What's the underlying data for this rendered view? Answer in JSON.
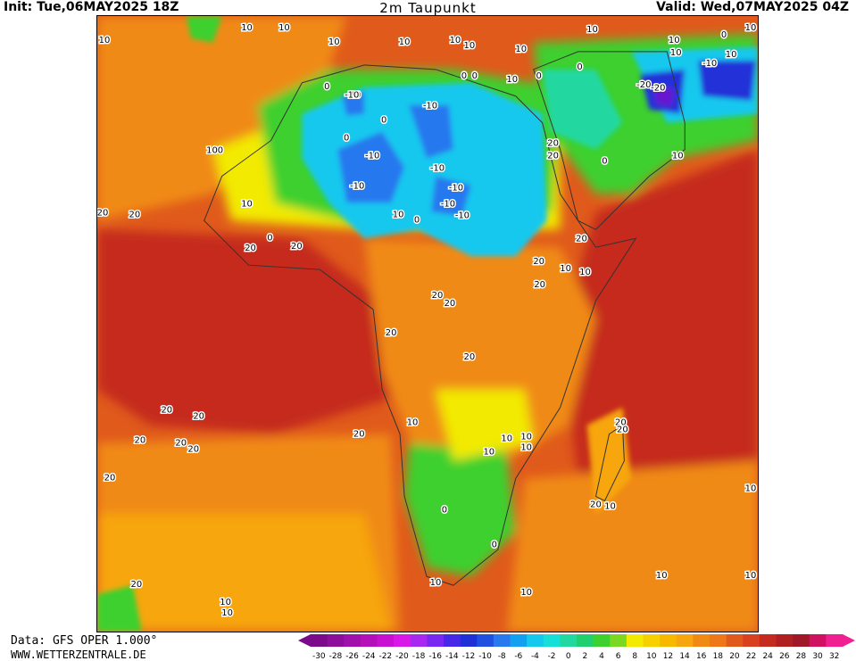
{
  "header": {
    "init": "Init: Tue,06MAY2025 18Z",
    "title": "2m Taupunkt",
    "valid": "Valid: Wed,07MAY2025 04Z"
  },
  "footer": {
    "source": "Data: GFS OPER 1.000°",
    "website": "WWW.WETTERZENTRALE.DE"
  },
  "colors": {
    "ocean_hot": "#c52a1f",
    "ocean_warm": "#e05a1c",
    "orange": "#f08a12",
    "light_orange": "#f7a60f",
    "yellow": "#f2ea00",
    "green": "#3ed02f",
    "teal": "#20d8a0",
    "cyan": "#14c8ee",
    "blue": "#2878ee",
    "dark_blue": "#2030d8",
    "violet": "#6818d0"
  },
  "legend": {
    "labels": [
      "-30",
      "-28",
      "-26",
      "-24",
      "-22",
      "-20",
      "-18",
      "-16",
      "-14",
      "-12",
      "-10",
      "-8",
      "-6",
      "-4",
      "-2",
      "0",
      "2",
      "4",
      "6",
      "8",
      "10",
      "12",
      "14",
      "16",
      "18",
      "20",
      "22",
      "24",
      "26",
      "28",
      "30",
      "32"
    ],
    "colors": [
      "#7a0a8a",
      "#8c0e9a",
      "#a010aa",
      "#b410ba",
      "#c810d0",
      "#d818e8",
      "#a828f0",
      "#7828f0",
      "#4828e8",
      "#2030d8",
      "#2050e0",
      "#2878ee",
      "#14a0f0",
      "#14c8ee",
      "#14e0d8",
      "#20d8a0",
      "#20d070",
      "#3ed02f",
      "#7ad820",
      "#f2ea00",
      "#f7d000",
      "#f7b800",
      "#f7a60f",
      "#f08a12",
      "#ee7818",
      "#e05a1c",
      "#d84020",
      "#c52a1f",
      "#b02020",
      "#a01828",
      "#d01060",
      "#f02090"
    ]
  },
  "contour_labels": [
    "10",
    "10",
    "10",
    "10",
    "10",
    "10",
    "10",
    "10",
    "10",
    "10",
    "0",
    "10",
    "10",
    "10",
    "-10",
    "0",
    "-10",
    "-20",
    "-20",
    "10",
    "0",
    "-10",
    "-10",
    "0",
    "0",
    "0",
    "20",
    "20",
    "0",
    "10",
    "0",
    "-10",
    "-10",
    "-10",
    "-10",
    "-10",
    "-10",
    "0",
    "10",
    "0",
    "100",
    "20",
    "20",
    "10",
    "0",
    "20",
    "20",
    "20",
    "20",
    "10",
    "10",
    "20",
    "20",
    "20",
    "20",
    "20",
    "20",
    "20",
    "20",
    "20",
    "20",
    "20",
    "20",
    "20",
    "20",
    "10",
    "10",
    "10",
    "0",
    "0",
    "10",
    "10",
    "20",
    "10",
    "10",
    "10",
    "10",
    "10",
    "10",
    "20",
    "10",
    "10"
  ]
}
